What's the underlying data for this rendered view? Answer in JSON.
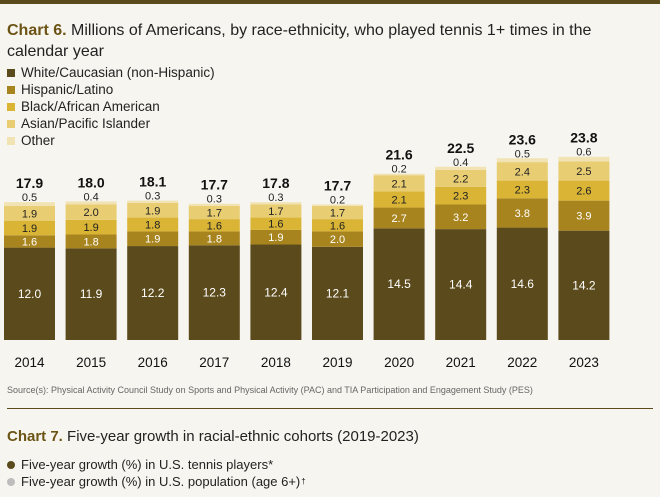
{
  "chart6": {
    "title_number": "Chart 6.",
    "title_text": "Millions of Americans, by race-ethnicity, who played tennis 1+ times in the calendar year"
  },
  "source": "Source(s): Physical Activity Council Study on Sports and Physical Activity (PAC) and TIA Participation and Engagement Study (PES)",
  "chart7": {
    "title_number": "Chart 7.",
    "title_text": "Five-year growth in racial-ethnic cohorts (2019-2023)",
    "legend": [
      {
        "label": "Five-year growth (%) in U.S. tennis players*",
        "sup": "",
        "color": "#5b4a1b"
      },
      {
        "label": "Five-year growth (%) in U.S. population (age 6+)",
        "sup": "†",
        "color": "#bdbdbd"
      }
    ]
  },
  "chart_data": {
    "type": "bar",
    "stacked": true,
    "title": "Millions of Americans, by race-ethnicity, who played tennis 1+ times in the calendar year",
    "categories": [
      "2014",
      "2015",
      "2016",
      "2017",
      "2018",
      "2019",
      "2020",
      "2021",
      "2022",
      "2023"
    ],
    "totals": [
      "17.9",
      "18.0",
      "18.1",
      "17.7",
      "17.8",
      "17.7",
      "21.6",
      "22.5",
      "23.6",
      "23.8"
    ],
    "series": [
      {
        "name": "White/Caucasian (non-Hispanic)",
        "color": "#5b4a1b",
        "label_color": "#ffffff",
        "values": [
          12.0,
          11.9,
          12.2,
          12.3,
          12.4,
          12.1,
          14.5,
          14.4,
          14.6,
          14.2
        ]
      },
      {
        "name": "Hispanic/Latino",
        "color": "#a8841e",
        "label_color": "#ffffff",
        "values": [
          1.6,
          1.8,
          1.9,
          1.8,
          1.9,
          2.0,
          2.7,
          3.2,
          3.8,
          3.9
        ]
      },
      {
        "name": "Black/African American",
        "color": "#d9b435",
        "label_color": "#222222",
        "values": [
          1.9,
          1.9,
          1.8,
          1.6,
          1.6,
          1.6,
          2.1,
          2.3,
          2.3,
          2.6
        ]
      },
      {
        "name": "Asian/Pacific Islander",
        "color": "#e8cd72",
        "label_color": "#222222",
        "values": [
          1.9,
          2.0,
          1.9,
          1.7,
          1.7,
          1.7,
          2.1,
          2.2,
          2.4,
          2.5
        ]
      },
      {
        "name": "Other",
        "color": "#f1e3b3",
        "label_color": "#222222",
        "values": [
          0.5,
          0.4,
          0.3,
          0.3,
          0.3,
          0.2,
          0.2,
          0.4,
          0.5,
          0.6
        ]
      }
    ],
    "ylim": [
      0,
      25
    ],
    "xlabel": "",
    "ylabel": "",
    "legend_position": "top-left"
  }
}
